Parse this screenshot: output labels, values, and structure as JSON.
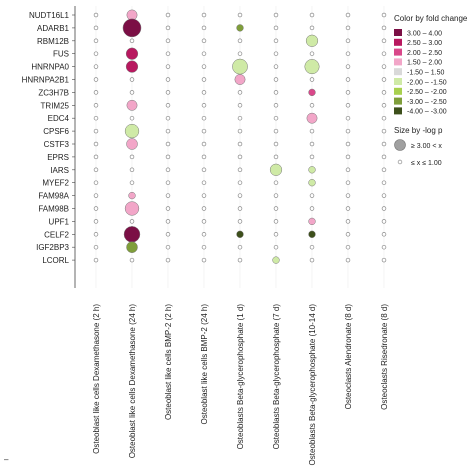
{
  "chart_data": {
    "type": "scatter",
    "title": "",
    "genes": [
      "NUDT16L1",
      "ADARB1",
      "RBM12B",
      "FUS",
      "HNRNPA0",
      "HNRNPA2B1",
      "ZC3H7B",
      "TRIM25",
      "EDC4",
      "CPSF6",
      "CSTF3",
      "EPRS",
      "IARS",
      "MYEF2",
      "FAM98A",
      "FAM98B",
      "UPF1",
      "CELF2",
      "IGF2BP3",
      "LCORL"
    ],
    "conditions": [
      "Osteoblast like cells Dexamethasone (2 h)",
      "Osteoblast like cells Dexamethasone (24 h)",
      "Osteoblast like cells BMP-2 (2 h)",
      "Osteoblast like cells BMP-2 (24 h)",
      "Osteoblasts Beta-glycerophosphate (1 d)",
      "Osteoblasts Beta-glycerophosphate (7 d)",
      "Osteoblasts Beta-glycerophosphate (10-14 d)",
      "Osteoclasts Alendronate (8 d)",
      "Osteoclasts Risedronate (8 d)"
    ],
    "points": [
      {
        "gene": "NUDT16L1",
        "cond": 1,
        "fc": 1.8,
        "size": 0.45
      },
      {
        "gene": "ADARB1",
        "cond": 1,
        "fc": 3.4,
        "size": 1.0
      },
      {
        "gene": "ADARB1",
        "cond": 4,
        "fc": -2.8,
        "size": 0.2
      },
      {
        "gene": "RBM12B",
        "cond": 6,
        "fc": -1.7,
        "size": 0.55
      },
      {
        "gene": "FUS",
        "cond": 1,
        "fc": 2.5,
        "size": 0.55
      },
      {
        "gene": "HNRNPA0",
        "cond": 1,
        "fc": 2.7,
        "size": 0.55
      },
      {
        "gene": "HNRNPA0",
        "cond": 4,
        "fc": -1.7,
        "size": 0.8
      },
      {
        "gene": "HNRNPA0",
        "cond": 6,
        "fc": -1.7,
        "size": 0.75
      },
      {
        "gene": "HNRNPA2B1",
        "cond": 4,
        "fc": 1.7,
        "size": 0.45
      },
      {
        "gene": "ZC3H7B",
        "cond": 6,
        "fc": 2.0,
        "size": 0.2
      },
      {
        "gene": "TRIM25",
        "cond": 1,
        "fc": 1.7,
        "size": 0.45
      },
      {
        "gene": "EDC4",
        "cond": 6,
        "fc": 1.8,
        "size": 0.45
      },
      {
        "gene": "CPSF6",
        "cond": 1,
        "fc": -1.6,
        "size": 0.7
      },
      {
        "gene": "CSTF3",
        "cond": 1,
        "fc": 1.8,
        "size": 0.5
      },
      {
        "gene": "IARS",
        "cond": 5,
        "fc": -1.7,
        "size": 0.55
      },
      {
        "gene": "IARS",
        "cond": 6,
        "fc": -1.8,
        "size": 0.2
      },
      {
        "gene": "MYEF2",
        "cond": 6,
        "fc": -1.7,
        "size": 0.2
      },
      {
        "gene": "FAM98A",
        "cond": 1,
        "fc": 1.7,
        "size": 0.2
      },
      {
        "gene": "FAM98B",
        "cond": 1,
        "fc": 1.6,
        "size": 0.7
      },
      {
        "gene": "UPF1",
        "cond": 6,
        "fc": 1.8,
        "size": 0.2
      },
      {
        "gene": "CELF2",
        "cond": 1,
        "fc": 3.3,
        "size": 0.85
      },
      {
        "gene": "CELF2",
        "cond": 4,
        "fc": -3.2,
        "size": 0.2
      },
      {
        "gene": "CELF2",
        "cond": 6,
        "fc": -3.8,
        "size": 0.2
      },
      {
        "gene": "IGF2BP3",
        "cond": 1,
        "fc": -2.8,
        "size": 0.5
      },
      {
        "gene": "LCORL",
        "cond": 5,
        "fc": -1.7,
        "size": 0.2
      }
    ],
    "legend_color": {
      "title": "Color by fold change",
      "items": [
        {
          "label": "3.00 – 4.00",
          "color": "#7b0f45"
        },
        {
          "label": "2.50 – 3.00",
          "color": "#b8185f"
        },
        {
          "label": "2.00 – 2.50",
          "color": "#d9488a"
        },
        {
          "label": "1.50 – 2.00",
          "color": "#f2a6c8"
        },
        {
          "label": "-1.50 – 1.50",
          "color": "#d9d9d9"
        },
        {
          "label": "-2.00 – -1.50",
          "color": "#cfeaa6"
        },
        {
          "label": "-2.50 – -2.00",
          "color": "#a8d04e"
        },
        {
          "label": "-3.00 – -2.50",
          "color": "#7f9e3a"
        },
        {
          "label": "-4.00 – -3.00",
          "color": "#3d4f1b"
        }
      ]
    },
    "legend_size": {
      "title": "Size by -log p",
      "items": [
        {
          "label": "≥ 3.00 < x",
          "size": 1.0
        },
        {
          "label": "≤ x ≤ 1.00",
          "size": 0.0
        }
      ]
    },
    "grid": true,
    "legend_position": "right"
  }
}
